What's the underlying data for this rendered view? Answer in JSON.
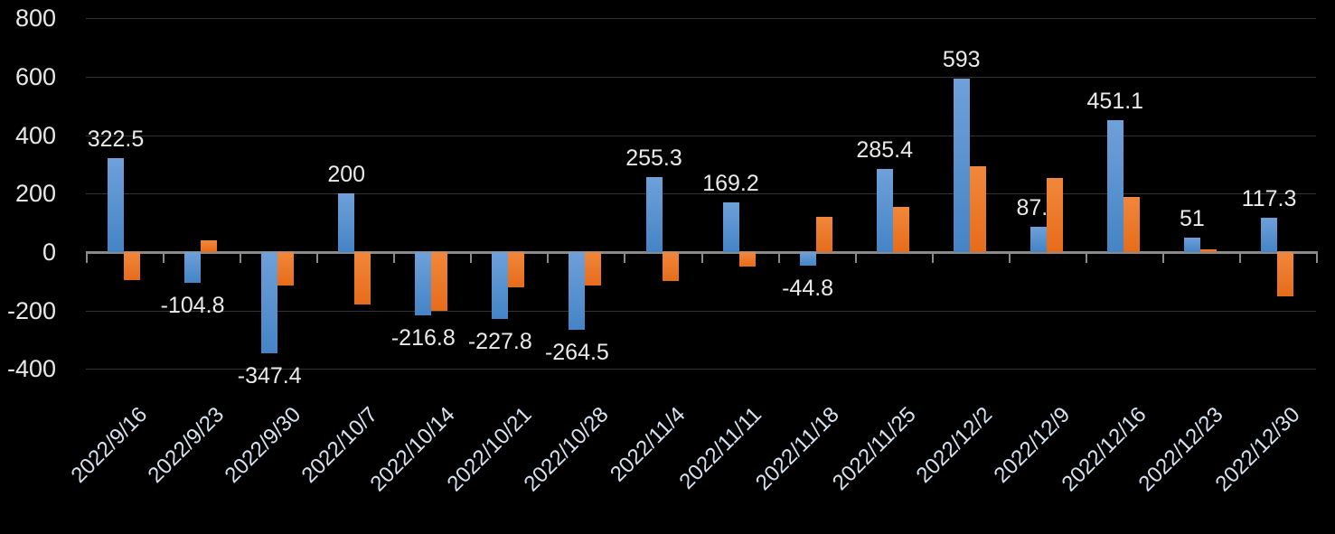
{
  "chart_data": {
    "type": "bar",
    "title": "",
    "xlabel": "",
    "ylabel": "",
    "legend": "none",
    "grid": true,
    "categories": [
      "2022/9/16",
      "2022/9/23",
      "2022/9/30",
      "2022/10/7",
      "2022/10/14",
      "2022/10/21",
      "2022/10/28",
      "2022/11/4",
      "2022/11/11",
      "2022/11/18",
      "2022/11/25",
      "2022/12/2",
      "2022/12/9",
      "2022/12/16",
      "2022/12/23",
      "2022/12/30"
    ],
    "series": [
      {
        "name": "series-blue",
        "color": "#5b9bd5",
        "values": [
          322.5,
          -104.8,
          -347.4,
          200,
          -216.8,
          -227.8,
          -264.5,
          255.3,
          169.2,
          -44.8,
          285.4,
          593,
          87.7,
          451.1,
          51,
          117.3
        ],
        "data_labels": [
          "322.5",
          "-104.8",
          "-347.4",
          "200",
          "-216.8",
          "-227.8",
          "-264.5",
          "255.3",
          "169.2",
          "-44.8",
          "285.4",
          "593",
          "87.7",
          "451.1",
          "51",
          "117.3"
        ]
      },
      {
        "name": "series-orange",
        "color": "#ed7d31",
        "values": [
          -95,
          40,
          -115,
          -180,
          -200,
          -120,
          -115,
          -100,
          -50,
          120,
          155,
          295,
          255,
          190,
          10,
          -150
        ],
        "data_labels": []
      }
    ],
    "y_axis": {
      "min": -400,
      "max": 800,
      "tick_values": [
        800,
        600,
        400,
        200,
        0,
        -200,
        -400
      ],
      "tick_labels": [
        "800",
        "600",
        "400",
        "200",
        "0",
        "-200",
        "-400"
      ]
    },
    "colors": {
      "background": "#000000",
      "gridline": "#343434",
      "axis": "#8a8a8a",
      "y_tick_label": "#e8e8e8",
      "x_tick_label": "#d7e2f0",
      "data_label": "#eaeaea",
      "blue_top": "#6fa0d9",
      "blue_bottom": "#4484c6",
      "orange_top": "#f1873b",
      "orange_bottom": "#e66c1b"
    }
  }
}
